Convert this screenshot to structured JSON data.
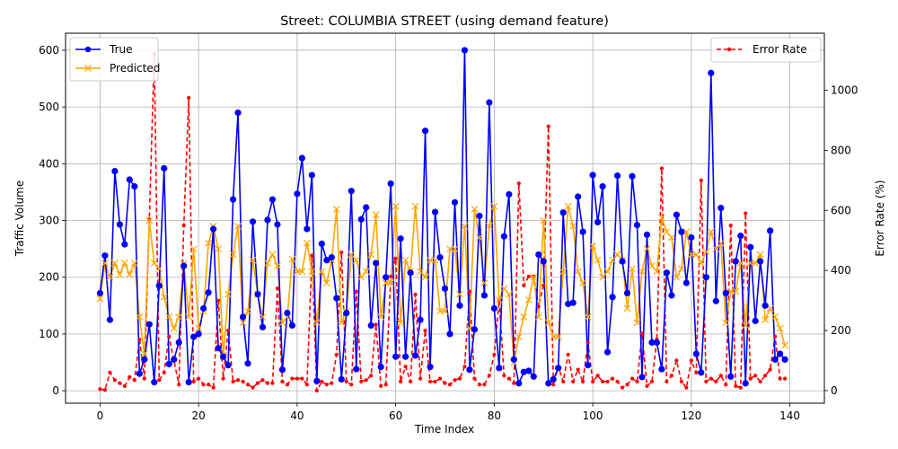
{
  "chart_data": {
    "type": "line",
    "title": "Street: COLUMBIA STREET (using demand feature)",
    "xlabel": "Time Index",
    "ylabel": "Traffic Volume",
    "y2label": "Error Rate (%)",
    "xlim": [
      -7,
      147
    ],
    "ylim": [
      -22,
      630
    ],
    "y2lim": [
      -42,
      1190
    ],
    "xticks": [
      0,
      20,
      40,
      60,
      80,
      100,
      120,
      140
    ],
    "yticks": [
      0,
      100,
      200,
      300,
      400,
      500,
      600
    ],
    "y2ticks": [
      0,
      200,
      400,
      600,
      800,
      1000
    ],
    "grid": true,
    "legend_left": {
      "position": "upper-left",
      "entries": [
        "True",
        "Predicted"
      ]
    },
    "legend_right": {
      "position": "upper-right",
      "entries": [
        "Error Rate"
      ]
    },
    "colors": {
      "true": "#0000ff",
      "predicted": "#ffa500",
      "error": "#ff0000"
    },
    "x": [
      0,
      1,
      2,
      3,
      4,
      5,
      6,
      7,
      8,
      9,
      10,
      11,
      12,
      13,
      14,
      15,
      16,
      17,
      18,
      19,
      20,
      21,
      22,
      23,
      24,
      25,
      26,
      27,
      28,
      29,
      30,
      31,
      32,
      33,
      34,
      35,
      36,
      37,
      38,
      39,
      40,
      41,
      42,
      43,
      44,
      45,
      46,
      47,
      48,
      49,
      50,
      51,
      52,
      53,
      54,
      55,
      56,
      57,
      58,
      59,
      60,
      61,
      62,
      63,
      64,
      65,
      66,
      67,
      68,
      69,
      70,
      71,
      72,
      73,
      74,
      75,
      76,
      77,
      78,
      79,
      80,
      81,
      82,
      83,
      84,
      85,
      86,
      87,
      88,
      89,
      90,
      91,
      92,
      93,
      94,
      95,
      96,
      97,
      98,
      99,
      100,
      101,
      102,
      103,
      104,
      105,
      106,
      107,
      108,
      109,
      110,
      111,
      112,
      113,
      114,
      115,
      116,
      117,
      118,
      119,
      120,
      121,
      122,
      123,
      124,
      125,
      126,
      127,
      128,
      129,
      130,
      131,
      132,
      133,
      134,
      135,
      136,
      137,
      138,
      139
    ],
    "series": [
      {
        "name": "True",
        "axis": "left",
        "values": [
          172,
          238,
          125,
          387,
          293,
          258,
          372,
          360,
          30,
          55,
          117,
          15,
          185,
          392,
          47,
          55,
          85,
          220,
          15,
          95,
          100,
          145,
          173,
          285,
          75,
          60,
          45,
          337,
          490,
          130,
          48,
          298,
          170,
          112,
          301,
          337,
          293,
          37,
          137,
          115,
          347,
          410,
          285,
          380,
          17,
          259,
          230,
          235,
          163,
          20,
          137,
          352,
          38,
          302,
          323,
          115,
          225,
          42,
          200,
          365,
          60,
          268,
          60,
          208,
          62,
          125,
          458,
          42,
          315,
          235,
          180,
          100,
          332,
          150,
          600,
          37,
          108,
          308,
          168,
          508,
          145,
          40,
          272,
          346,
          55,
          13,
          33,
          35,
          25,
          240,
          228,
          13,
          20,
          40,
          314,
          153,
          155,
          342,
          280,
          45,
          380,
          297,
          360,
          68,
          165,
          379,
          228,
          172,
          378,
          292,
          24,
          275,
          85,
          85,
          38,
          208,
          168,
          310,
          280,
          190,
          270,
          65,
          32,
          200,
          560,
          158,
          322,
          172,
          25,
          228,
          273,
          13,
          253,
          123,
          228,
          150,
          282,
          55,
          65,
          55
        ]
      },
      {
        "name": "Predicted",
        "axis": "left",
        "values": [
          162,
          225,
          200,
          225,
          205,
          225,
          205,
          225,
          130,
          65,
          300,
          225,
          215,
          165,
          130,
          110,
          130,
          223,
          130,
          250,
          110,
          140,
          260,
          290,
          250,
          60,
          170,
          240,
          290,
          120,
          140,
          230,
          170,
          130,
          225,
          240,
          220,
          120,
          130,
          232,
          210,
          210,
          260,
          210,
          120,
          210,
          190,
          230,
          320,
          120,
          140,
          240,
          230,
          200,
          210,
          240,
          310,
          130,
          190,
          190,
          325,
          120,
          230,
          210,
          325,
          210,
          200,
          230,
          230,
          140,
          140,
          250,
          250,
          170,
          290,
          110,
          320,
          270,
          190,
          290,
          325,
          160,
          180,
          170,
          50,
          95,
          130,
          160,
          200,
          130,
          300,
          120,
          95,
          95,
          210,
          325,
          290,
          210,
          190,
          130,
          255,
          230,
          200,
          210,
          230,
          240,
          230,
          145,
          215,
          120,
          210,
          250,
          220,
          210,
          305,
          280,
          270,
          200,
          215,
          280,
          240,
          240,
          225,
          245,
          280,
          250,
          260,
          120,
          175,
          175,
          225,
          115,
          225,
          225,
          240,
          125,
          145,
          130,
          110,
          80
        ]
      },
      {
        "name": "Error Rate",
        "axis": "right",
        "values": [
          5,
          2,
          60,
          35,
          25,
          15,
          45,
          35,
          170,
          40,
          570,
          1120,
          35,
          60,
          180,
          100,
          20,
          550,
          975,
          30,
          40,
          20,
          20,
          10,
          300,
          40,
          200,
          30,
          35,
          30,
          20,
          10,
          25,
          35,
          25,
          25,
          340,
          30,
          20,
          40,
          40,
          40,
          20,
          450,
          0,
          30,
          20,
          25,
          120,
          460,
          30,
          20,
          330,
          30,
          35,
          50,
          220,
          15,
          20,
          380,
          440,
          30,
          80,
          30,
          320,
          40,
          200,
          30,
          30,
          40,
          25,
          20,
          35,
          40,
          80,
          330,
          40,
          20,
          20,
          50,
          120,
          300,
          50,
          40,
          25,
          690,
          350,
          380,
          380,
          280,
          350,
          880,
          20,
          80,
          30,
          120,
          30,
          70,
          30,
          160,
          30,
          50,
          30,
          30,
          40,
          30,
          10,
          20,
          40,
          30,
          190,
          15,
          30,
          170,
          740,
          30,
          50,
          100,
          30,
          10,
          100,
          60,
          700,
          30,
          40,
          30,
          50,
          20,
          550,
          15,
          10,
          590,
          40,
          50,
          30,
          50,
          70,
          180,
          40,
          40
        ]
      }
    ]
  }
}
